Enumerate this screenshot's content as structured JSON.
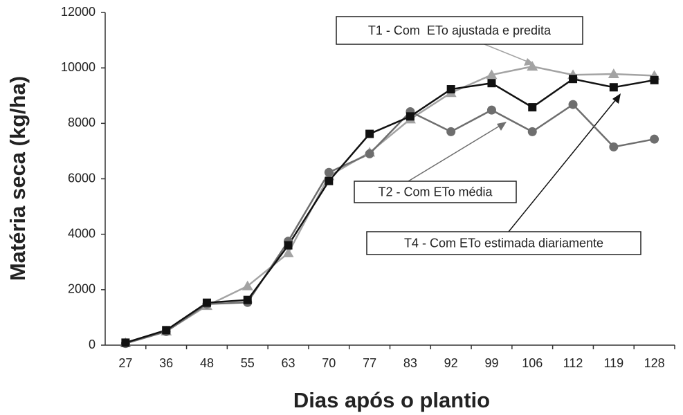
{
  "chart_data": {
    "type": "line",
    "categories": [
      "27",
      "36",
      "48",
      "55",
      "63",
      "70",
      "77",
      "83",
      "92",
      "99",
      "106",
      "112",
      "119",
      "128"
    ],
    "series": [
      {
        "name": "T1 - Com  ETo ajustada e predita",
        "color": "#a3a3a3",
        "marker": "triangle",
        "values": [
          80,
          500,
          1420,
          2130,
          3320,
          6100,
          6950,
          8150,
          9100,
          9750,
          10050,
          9750,
          9780,
          9720
        ]
      },
      {
        "name": "T2 - Com ETo média",
        "color": "#6e6e6e",
        "marker": "circle",
        "values": [
          60,
          490,
          1480,
          1540,
          3750,
          6230,
          6900,
          8420,
          7700,
          8480,
          7700,
          8680,
          7150,
          7430
        ]
      },
      {
        "name": "T4 - Com ETo estimada diariamente",
        "color": "#111111",
        "marker": "square",
        "values": [
          90,
          540,
          1530,
          1630,
          3600,
          5920,
          7620,
          8250,
          9230,
          9450,
          8580,
          9600,
          9300,
          9560
        ]
      }
    ],
    "ylim": [
      0,
      12000
    ],
    "yticks": [
      0,
      2000,
      4000,
      6000,
      8000,
      10000,
      12000
    ],
    "grid": false,
    "xlabel": "Dias após o plantio",
    "ylabel": "Matéria seca (kg/ha)"
  }
}
